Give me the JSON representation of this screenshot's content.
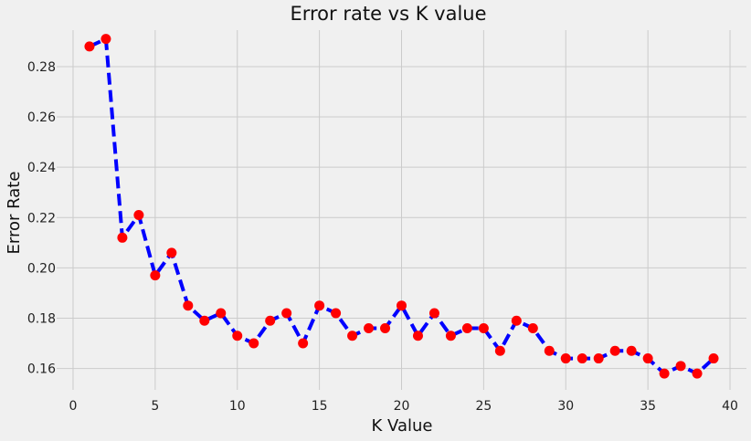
{
  "chart_data": {
    "type": "line",
    "title": "Error rate vs K value",
    "xlabel": "K Value",
    "ylabel": "Error Rate",
    "xlim": [
      -1,
      41
    ],
    "ylim": [
      0.1515,
      0.2945
    ],
    "xticks": [
      0,
      5,
      10,
      15,
      20,
      25,
      30,
      35,
      40
    ],
    "xtick_labels": [
      "0",
      "5",
      "10",
      "15",
      "20",
      "25",
      "30",
      "35",
      "40"
    ],
    "yticks": [
      0.16,
      0.18,
      0.2,
      0.22,
      0.24,
      0.26,
      0.28
    ],
    "ytick_labels": [
      "0.16",
      "0.18",
      "0.20",
      "0.22",
      "0.24",
      "0.26",
      "0.28"
    ],
    "grid": true,
    "series": [
      {
        "line_color": "#0000ff",
        "line_style": "dashed",
        "marker_color": "#ff0000",
        "marker": "circle",
        "x": [
          1,
          2,
          3,
          4,
          5,
          6,
          7,
          8,
          9,
          10,
          11,
          12,
          13,
          14,
          15,
          16,
          17,
          18,
          19,
          20,
          21,
          22,
          23,
          24,
          25,
          26,
          27,
          28,
          29,
          30,
          31,
          32,
          33,
          34,
          35,
          36,
          37,
          38,
          39
        ],
        "values": [
          0.288,
          0.291,
          0.212,
          0.221,
          0.197,
          0.206,
          0.185,
          0.179,
          0.182,
          0.173,
          0.17,
          0.179,
          0.182,
          0.17,
          0.185,
          0.182,
          0.173,
          0.176,
          0.176,
          0.185,
          0.173,
          0.182,
          0.173,
          0.176,
          0.176,
          0.167,
          0.179,
          0.176,
          0.167,
          0.164,
          0.164,
          0.164,
          0.167,
          0.167,
          0.164,
          0.158,
          0.161,
          0.158,
          0.164
        ]
      }
    ]
  },
  "style": {
    "background": "#f0f0f0",
    "grid_color": "#cbcbcb"
  }
}
